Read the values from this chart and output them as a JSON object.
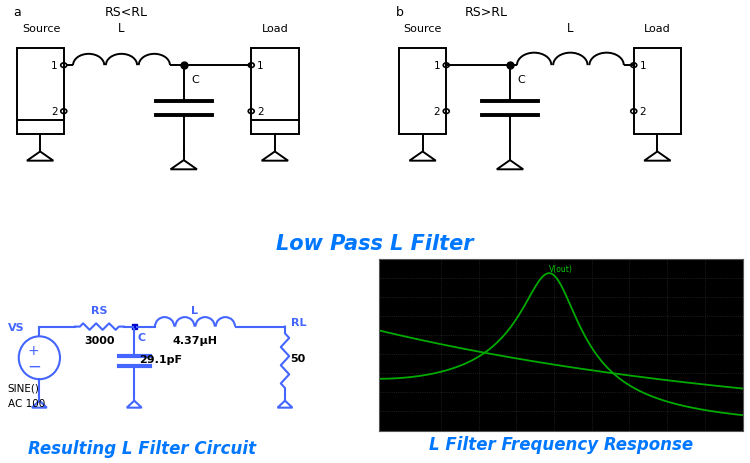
{
  "title": "Low Pass L Filter",
  "title_color": "#0077FF",
  "title_fontsize": 15,
  "subtitle_left": "Resulting L Filter Circuit",
  "subtitle_right": "L Filter Frequency Response",
  "subtitle_color": "#0077FF",
  "subtitle_fontsize": 12,
  "bg_color": "#FFFFFF",
  "circuit_color": "#000000",
  "blue_circuit_color": "#4466FF",
  "plot_bg": "#000000",
  "plot_grid_color": "#2a2a2a",
  "plot_line_color": "#00AA00",
  "label_a": "a",
  "label_b": "b",
  "label_rs_lt_rl": "RS<RL",
  "label_rs_gt_rl": "RS>RL",
  "label_source": "Source",
  "label_load": "Load",
  "label_L": "L",
  "label_C": "C",
  "label_RS": "RS",
  "label_VS": "VS",
  "label_RL": "RL",
  "label_SINE": "SINE()",
  "label_AC": "AC 100",
  "label_3000": "3000",
  "label_L_val": "4.37μH",
  "label_C_val": "29.1pF",
  "label_RL_val": "50",
  "freq_response_title": "V(out)"
}
